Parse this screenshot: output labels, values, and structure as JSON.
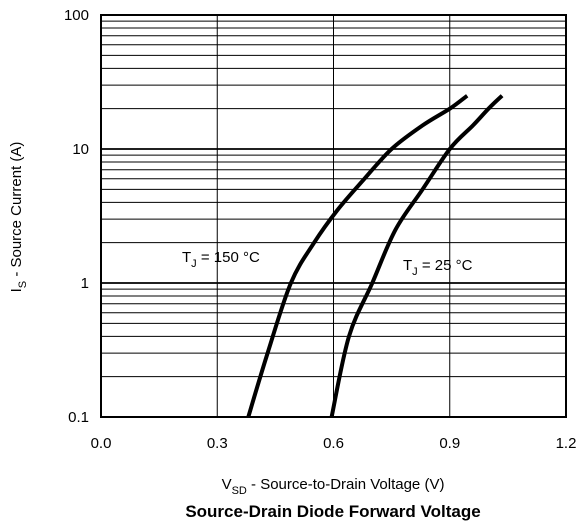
{
  "chart_data": {
    "type": "line",
    "title": "Source-Drain Diode Forward Voltage",
    "xlabel": {
      "main": "V",
      "sub": "SD",
      "rest": " - Source-to-Drain Voltage (V)"
    },
    "ylabel": {
      "main": "I",
      "sub": "S",
      "rest": " - Source Current (A)"
    },
    "xlim": [
      0.0,
      1.2
    ],
    "ylim": [
      0.1,
      100
    ],
    "y_scale": "log",
    "x_ticks": [
      "0.0",
      "0.3",
      "0.6",
      "0.9",
      "1.2"
    ],
    "x_tick_values": [
      0.0,
      0.3,
      0.6,
      0.9,
      1.2
    ],
    "y_ticks": [
      "0.1",
      "1",
      "10",
      "100"
    ],
    "y_tick_values": [
      0.1,
      1,
      10,
      100
    ],
    "grid": true,
    "series": [
      {
        "label": {
          "main": "T",
          "sub": "J",
          "rest": " = 150 °C"
        },
        "x": [
          0.38,
          0.43,
          0.49,
          0.55,
          0.61,
          0.68,
          0.75,
          0.83,
          0.9,
          0.945
        ],
        "y": [
          0.1,
          0.3,
          1.0,
          2.0,
          3.5,
          6.0,
          10.0,
          15.0,
          20.0,
          25.0
        ]
      },
      {
        "label": {
          "main": "T",
          "sub": "J",
          "rest": " = 25 °C"
        },
        "x": [
          0.595,
          0.64,
          0.7,
          0.76,
          0.83,
          0.9,
          0.96,
          1.0,
          1.035
        ],
        "y": [
          0.1,
          0.4,
          1.0,
          2.5,
          5.0,
          10.0,
          15.0,
          20.0,
          25.0
        ]
      }
    ]
  }
}
